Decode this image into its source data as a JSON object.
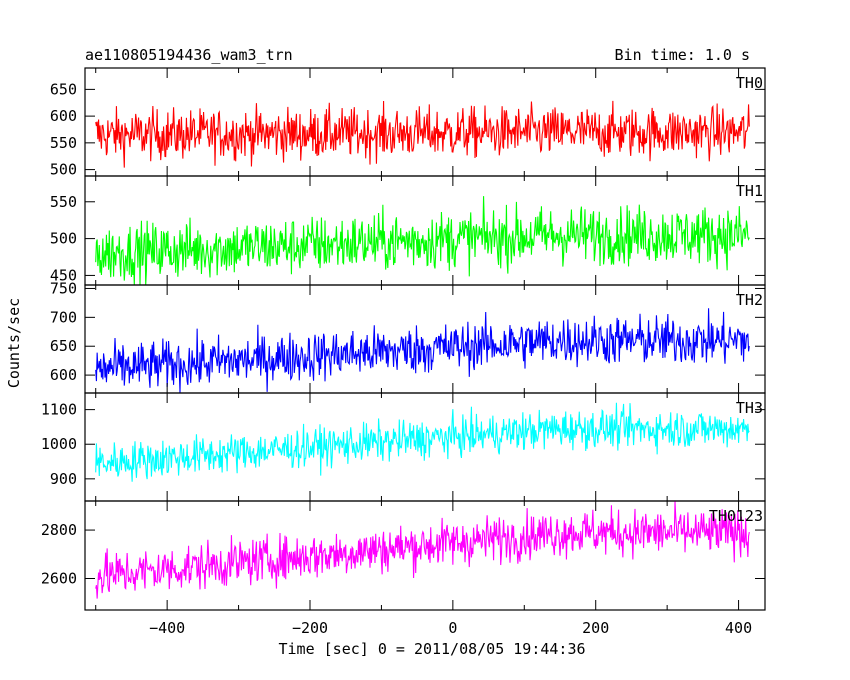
{
  "header": {
    "title": "ae110805194436_wam3_trn",
    "bin_time": "Bin time: 1.0 s"
  },
  "chart_data": {
    "type": "line",
    "title": "ae110805194436_wam3_trn",
    "xlabel": "Time [sec] 0 = 2011/08/05 19:44:36",
    "ylabel": "Counts/sec",
    "xlim": [
      -515,
      437
    ],
    "x_ticks": [
      "−400",
      "−200",
      "0",
      "200",
      "400"
    ],
    "x_range": [
      -500,
      415
    ],
    "x_step": 1,
    "grid": false,
    "panels": [
      {
        "name": "TH0",
        "color": "#ff0000",
        "ylim": [
          488,
          690
        ],
        "yticks": [
          500,
          550,
          600,
          650
        ],
        "trend_start": 565,
        "trend_end": 570,
        "noise": 42,
        "max": 690,
        "min": 488
      },
      {
        "name": "TH1",
        "color": "#00ff00",
        "ylim": [
          437,
          585
        ],
        "yticks": [
          450,
          500,
          550
        ],
        "trend_start": 480,
        "trend_end": 505,
        "noise": 35,
        "max": 585,
        "min": 437
      },
      {
        "name": "TH2",
        "color": "#0000ff",
        "ylim": [
          569,
          756
        ],
        "yticks": [
          600,
          650,
          700,
          750
        ],
        "trend_start": 610,
        "trend_end": 660,
        "noise": 38,
        "max": 756,
        "min": 569
      },
      {
        "name": "TH3",
        "color": "#00ffff",
        "ylim": [
          836,
          1148
        ],
        "yticks": [
          900,
          1000,
          1100
        ],
        "trend_start": 945,
        "trend_end": 1045,
        "noise": 50,
        "max": 1148,
        "min": 836
      },
      {
        "name": "TH0123",
        "color": "#ff00ff",
        "ylim": [
          2470,
          2920
        ],
        "yticks": [
          2600,
          2800
        ],
        "trend_start": 2610,
        "trend_end": 2790,
        "noise": 85,
        "max": 2920,
        "min": 2470
      }
    ]
  }
}
